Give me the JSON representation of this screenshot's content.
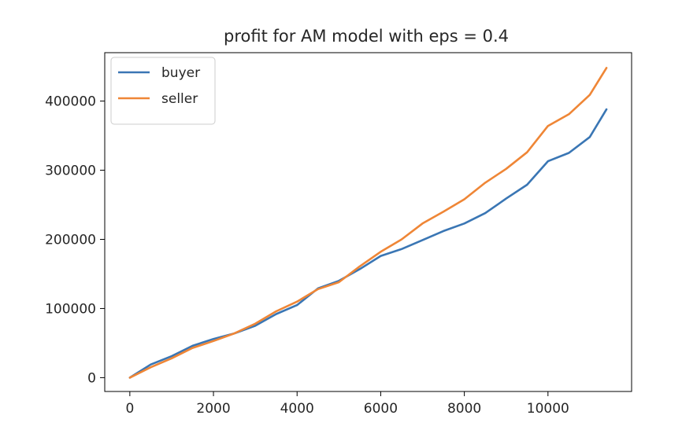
{
  "chart_data": {
    "type": "line",
    "title": "profit for AM model with eps = 0.4",
    "xlabel": "",
    "ylabel": "",
    "xlim": [
      -600,
      12000
    ],
    "ylim": [
      -20000,
      470000
    ],
    "xticks": [
      0,
      2000,
      4000,
      6000,
      8000,
      10000
    ],
    "xtick_labels": [
      "0",
      "2000",
      "4000",
      "6000",
      "8000",
      "10000"
    ],
    "yticks": [
      0,
      100000,
      200000,
      300000,
      400000
    ],
    "ytick_labels": [
      "0",
      "100000",
      "200000",
      "300000",
      "400000"
    ],
    "grid": false,
    "legend_position": "upper-left",
    "series": [
      {
        "name": "buyer",
        "color": "#3a76b4",
        "x": [
          0,
          500,
          1000,
          1500,
          2000,
          2500,
          3000,
          3500,
          4000,
          4500,
          5000,
          5500,
          6000,
          6500,
          7000,
          7500,
          8000,
          8500,
          9000,
          9500,
          10000,
          10500,
          11000,
          11400
        ],
        "y": [
          0,
          19000,
          31000,
          46000,
          56000,
          64000,
          75000,
          92000,
          105000,
          129000,
          140000,
          157000,
          176000,
          186000,
          199000,
          212000,
          223000,
          238000,
          259000,
          279000,
          313000,
          325000,
          348000,
          388000
        ]
      },
      {
        "name": "seller",
        "color": "#ef8636",
        "x": [
          0,
          500,
          1000,
          1500,
          2000,
          2500,
          3000,
          3500,
          4000,
          4500,
          5000,
          5500,
          6000,
          6500,
          7000,
          7500,
          8000,
          8500,
          9000,
          9500,
          10000,
          10500,
          11000,
          11400
        ],
        "y": [
          0,
          15000,
          28000,
          43000,
          53000,
          64000,
          78000,
          96000,
          110000,
          128000,
          138000,
          161000,
          182000,
          200000,
          223000,
          240000,
          258000,
          282000,
          302000,
          326000,
          364000,
          381000,
          409000,
          448000
        ]
      }
    ]
  }
}
